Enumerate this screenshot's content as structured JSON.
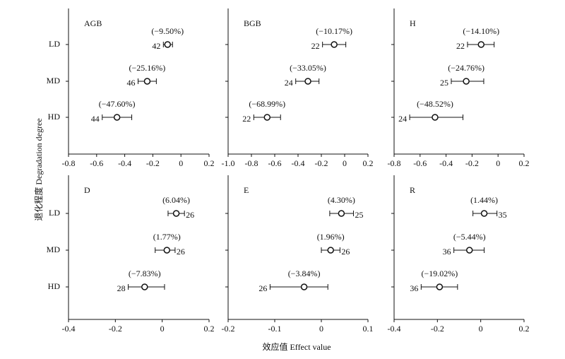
{
  "xlabel": "效应值 Effect value",
  "ylabel": "退化程度 Degradation degree",
  "chart_data": [
    {
      "type": "forest",
      "title": "AGB",
      "categories": [
        "LD",
        "MD",
        "HD"
      ],
      "values": [
        -0.095,
        -0.24,
        -0.455
      ],
      "lower": [
        -0.125,
        -0.305,
        -0.56
      ],
      "upper": [
        -0.06,
        -0.175,
        -0.35
      ],
      "n": [
        42,
        46,
        44
      ],
      "annotations": [
        "(−9.50%)",
        "(−25.16%)",
        "(−47.60%)"
      ],
      "xlim": [
        -0.8,
        0.2
      ],
      "xticks": [
        -0.8,
        -0.6,
        -0.4,
        -0.2,
        0,
        0.2
      ]
    },
    {
      "type": "forest",
      "title": "BGB",
      "categories": [
        null,
        null,
        null
      ],
      "values": [
        -0.09,
        -0.315,
        -0.665
      ],
      "lower": [
        -0.19,
        -0.42,
        -0.78
      ],
      "upper": [
        0.01,
        -0.22,
        -0.55
      ],
      "n": [
        22,
        24,
        22
      ],
      "annotations": [
        "(−10.17%)",
        "(−33.05%)",
        "(−68.99%)"
      ],
      "xlim": [
        -1.0,
        0.2
      ],
      "xticks": [
        {
          "value": -1,
          "label": "-1.0"
        },
        -0.8,
        -0.6,
        -0.4,
        -0.2,
        0,
        0.2
      ]
    },
    {
      "type": "forest",
      "title": "H",
      "categories": [
        null,
        null,
        null
      ],
      "values": [
        -0.13,
        -0.245,
        -0.485
      ],
      "lower": [
        -0.235,
        -0.36,
        -0.68
      ],
      "upper": [
        -0.03,
        -0.11,
        -0.27
      ],
      "n": [
        22,
        25,
        24
      ],
      "annotations": [
        "(−14.10%)",
        "(−24.76%)",
        "(−48.52%)"
      ],
      "xlim": [
        -0.8,
        0.2
      ],
      "xticks": [
        -0.8,
        -0.6,
        -0.4,
        -0.2,
        0,
        0.2
      ]
    },
    {
      "type": "forest",
      "title": "D",
      "categories": [
        "LD",
        "MD",
        "HD"
      ],
      "values": [
        0.06,
        0.02,
        -0.075
      ],
      "lower": [
        0.025,
        -0.03,
        -0.145
      ],
      "upper": [
        0.095,
        0.055,
        0.01
      ],
      "n": [
        26,
        26,
        28
      ],
      "annotations": [
        "(6.04%)",
        "(1.77%)",
        "(−7.83%)"
      ],
      "xlim": [
        -0.4,
        0.2
      ],
      "xticks": [
        -0.4,
        -0.2,
        0,
        0.2
      ]
    },
    {
      "type": "forest",
      "title": "E",
      "categories": [
        null,
        null,
        null
      ],
      "values": [
        0.043,
        0.02,
        -0.037
      ],
      "lower": [
        0.018,
        0,
        -0.11
      ],
      "upper": [
        0.069,
        0.04,
        0.014
      ],
      "n": [
        25,
        26,
        26
      ],
      "annotations": [
        "(4.30%)",
        "(1.96%)",
        "(−3.84%)"
      ],
      "xlim": [
        -0.2,
        0.1
      ],
      "xticks": [
        -0.2,
        -0.1,
        0,
        0.1
      ]
    },
    {
      "type": "forest",
      "title": "R",
      "categories": [
        null,
        null,
        null
      ],
      "values": [
        0.016,
        -0.052,
        -0.19
      ],
      "lower": [
        -0.036,
        -0.124,
        -0.275
      ],
      "upper": [
        0.075,
        0.016,
        -0.107
      ],
      "n": [
        35,
        36,
        36
      ],
      "annotations": [
        "(1.44%)",
        "(−5.44%)",
        "(−19.02%)"
      ],
      "xlim": [
        -0.4,
        0.2
      ],
      "xticks": [
        -0.4,
        -0.2,
        0,
        0.2
      ]
    }
  ]
}
